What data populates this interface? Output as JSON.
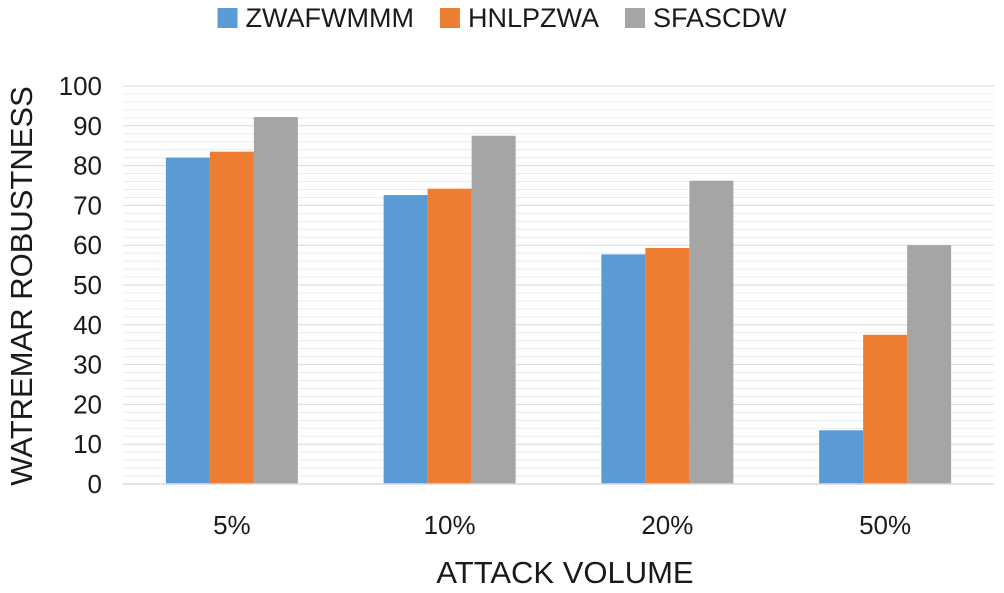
{
  "chart_data": {
    "type": "bar",
    "title": "",
    "xlabel": "ATTACK VOLUME",
    "ylabel": "WATREMAR ROBUSTNESS",
    "categories": [
      "5%",
      "10%",
      "20%",
      "50%"
    ],
    "series": [
      {
        "name": "ZWAFWMMM",
        "color": "#5b9bd5",
        "values": [
          82,
          72.6,
          57.7,
          13.5
        ]
      },
      {
        "name": "HNLPZWA",
        "color": "#ed7d31",
        "values": [
          83.5,
          74.2,
          59.3,
          37.5
        ]
      },
      {
        "name": "SFASCDW",
        "color": "#a5a5a5",
        "values": [
          92.2,
          87.5,
          76.2,
          60
        ]
      }
    ],
    "ylim": [
      0,
      100
    ],
    "yticks": [
      "0",
      "10",
      "20",
      "30",
      "40",
      "50",
      "60",
      "70",
      "80",
      "90",
      "100"
    ],
    "grid": true,
    "legend_position": "top-center"
  }
}
